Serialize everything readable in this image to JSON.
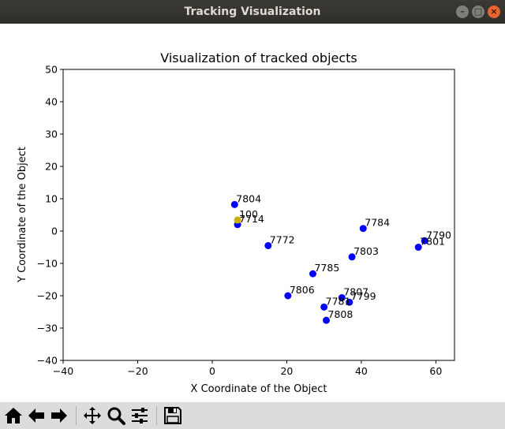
{
  "window": {
    "title": "Tracking Visualization"
  },
  "chart_data": {
    "type": "scatter",
    "title": "Visualization of tracked objects",
    "xlabel": "X Coordinate of the Object",
    "ylabel": "Y Coordinate of the Object",
    "xlim": [
      -40,
      65
    ],
    "ylim": [
      -40,
      50
    ],
    "xticks": [
      -40,
      -20,
      0,
      20,
      40,
      60
    ],
    "yticks": [
      -40,
      -30,
      -20,
      -10,
      0,
      10,
      20,
      30,
      40,
      50
    ],
    "grid": false,
    "series": [
      {
        "color": "#0000ff",
        "points": [
          {
            "label": "7804",
            "x": 6.0,
            "y": 8.2
          },
          {
            "label": "7714",
            "x": 6.8,
            "y": 2.0
          },
          {
            "label": "7772",
            "x": 15.0,
            "y": -4.5
          },
          {
            "label": "7784",
            "x": 40.5,
            "y": 0.8
          },
          {
            "label": "7790",
            "x": 57.0,
            "y": -3.0
          },
          {
            "label": "7801",
            "x": 55.3,
            "y": -5.0
          },
          {
            "label": "7803",
            "x": 37.5,
            "y": -8.0
          },
          {
            "label": "7785",
            "x": 27.0,
            "y": -13.2
          },
          {
            "label": "7806",
            "x": 20.3,
            "y": -20.0
          },
          {
            "label": "7807",
            "x": 34.8,
            "y": -20.6
          },
          {
            "label": "7799",
            "x": 36.8,
            "y": -22.0
          },
          {
            "label": "7781",
            "x": 30.0,
            "y": -23.5
          },
          {
            "label": "7808",
            "x": 30.6,
            "y": -27.6
          }
        ]
      },
      {
        "color": "#c8b400",
        "points": [
          {
            "label": "100",
            "x": 6.8,
            "y": 3.4
          }
        ]
      }
    ]
  },
  "toolbar": {
    "icons": [
      "home-icon",
      "back-icon",
      "forward-icon",
      "pan-icon",
      "zoom-icon",
      "configure-subplots-icon",
      "save-icon"
    ]
  }
}
